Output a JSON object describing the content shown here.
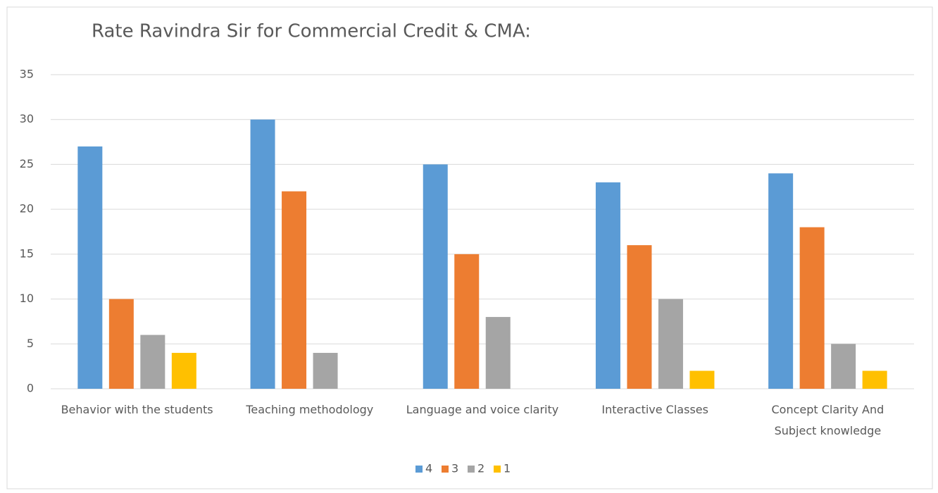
{
  "chart_data": {
    "type": "bar",
    "title": "Rate Ravindra Sir for Commercial Credit & CMA:",
    "categories": [
      "Behavior with the students",
      "Teaching methodology",
      "Language and voice clarity",
      "Interactive Classes",
      "Concept Clarity And Subject knowledge"
    ],
    "series": [
      {
        "name": "4",
        "color": "#5b9bd5",
        "values": [
          27,
          30,
          25,
          23,
          24
        ]
      },
      {
        "name": "3",
        "color": "#ed7d31",
        "values": [
          10,
          22,
          15,
          16,
          18
        ]
      },
      {
        "name": "2",
        "color": "#a5a5a5",
        "values": [
          6,
          4,
          8,
          10,
          5
        ]
      },
      {
        "name": "1",
        "color": "#ffc000",
        "values": [
          4,
          0,
          0,
          2,
          2
        ]
      }
    ],
    "ylim": [
      0,
      35
    ],
    "yticks": [
      0,
      5,
      10,
      15,
      20,
      25,
      30,
      35
    ],
    "grid": true,
    "legend": "bottom"
  }
}
